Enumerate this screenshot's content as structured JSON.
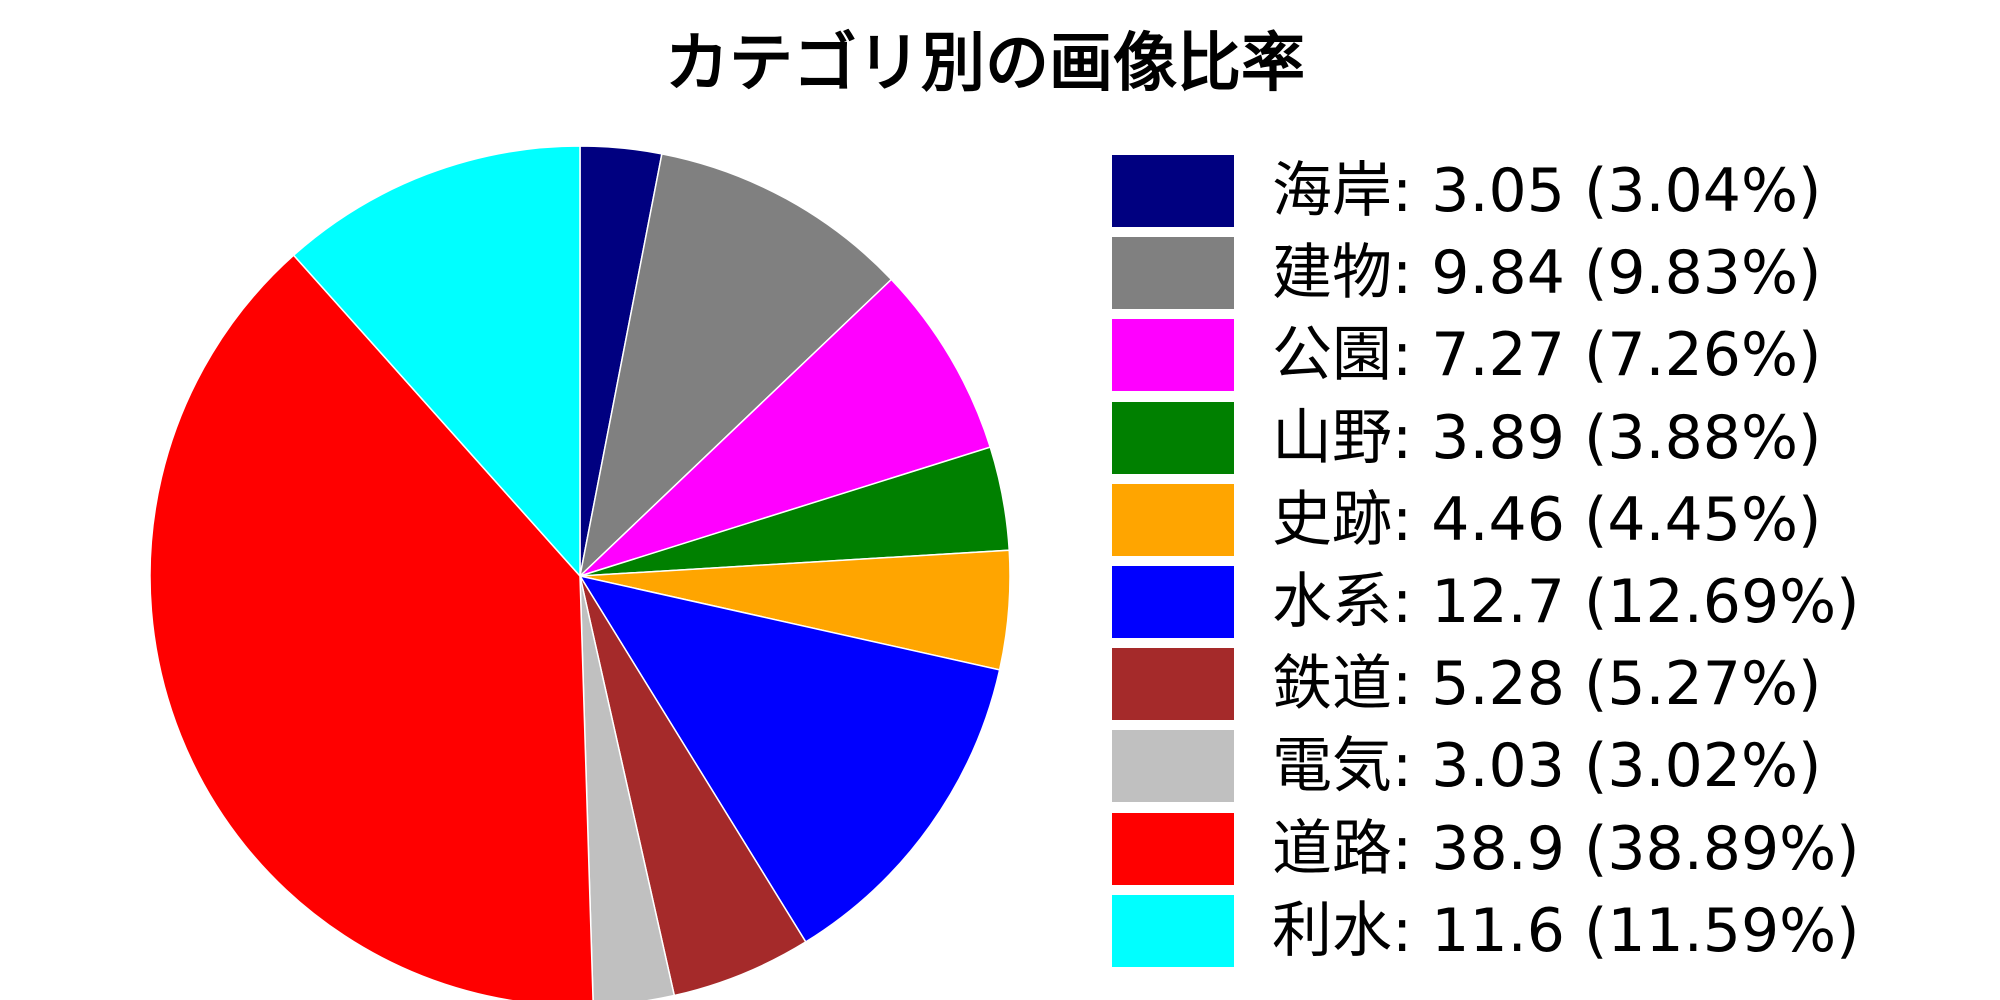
{
  "chart_data": {
    "type": "pie",
    "title": "カテゴリ別の画像比率",
    "start_angle_deg": 90,
    "direction": "clockwise",
    "legend_position": "right",
    "slices": [
      {
        "label": "海岸",
        "value": 3.05,
        "legend_text": "海岸: 3.05 (3.04%)",
        "color": "#000080"
      },
      {
        "label": "建物",
        "value": 9.84,
        "legend_text": "建物: 9.84 (9.83%)",
        "color": "#808080"
      },
      {
        "label": "公園",
        "value": 7.27,
        "legend_text": "公園: 7.27 (7.26%)",
        "color": "#FF00FF"
      },
      {
        "label": "山野",
        "value": 3.89,
        "legend_text": "山野: 3.89 (3.88%)",
        "color": "#008000"
      },
      {
        "label": "史跡",
        "value": 4.46,
        "legend_text": "史跡: 4.46 (4.45%)",
        "color": "#FFA500"
      },
      {
        "label": "水系",
        "value": 12.7,
        "legend_text": "水系: 12.7 (12.69%)",
        "color": "#0000FF"
      },
      {
        "label": "鉄道",
        "value": 5.28,
        "legend_text": "鉄道: 5.28 (5.27%)",
        "color": "#A52A2A"
      },
      {
        "label": "電気",
        "value": 3.03,
        "legend_text": "電気: 3.03 (3.02%)",
        "color": "#C0C0C0"
      },
      {
        "label": "道路",
        "value": 38.9,
        "legend_text": "道路: 38.9 (38.89%)",
        "color": "#FF0000"
      },
      {
        "label": "利水",
        "value": 11.6,
        "legend_text": "利水: 11.6 (11.59%)",
        "color": "#00FFFF"
      }
    ]
  }
}
